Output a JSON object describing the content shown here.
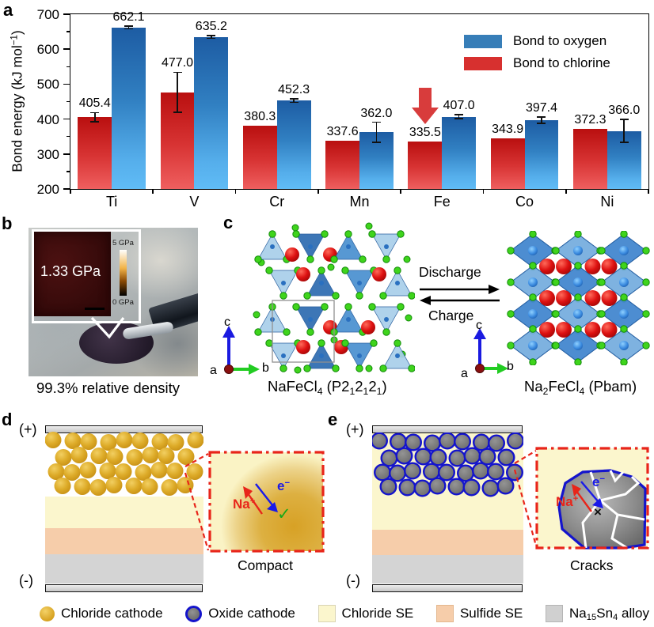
{
  "figure": {
    "panel_labels": {
      "a": "a",
      "b": "b",
      "c": "c",
      "d": "d",
      "e": "e"
    }
  },
  "chart_data": {
    "type": "bar",
    "categories": [
      "Ti",
      "V",
      "Cr",
      "Mn",
      "Fe",
      "Co",
      "Ni"
    ],
    "series": [
      {
        "name": "Bond to oxygen",
        "legend_color": "#377eb8",
        "values": [
          662.1,
          635.2,
          452.3,
          362.0,
          407.0,
          397.4,
          366.0
        ],
        "errors": [
          4,
          4,
          5,
          29,
          5,
          9,
          33
        ]
      },
      {
        "name": "Bond to chlorine",
        "legend_color": "#d7302f",
        "values": [
          405.4,
          477.0,
          380.3,
          337.6,
          335.5,
          343.9,
          372.3
        ],
        "errors": [
          13,
          57,
          0,
          0,
          0,
          0,
          0
        ]
      }
    ],
    "ylabel_rich": [
      "Bond energy (kJ mol",
      {
        "sup": "−1"
      },
      ")"
    ],
    "ylim": [
      200,
      700
    ],
    "yticks": [
      200,
      300,
      400,
      500,
      600,
      700
    ],
    "highlight_arrow": {
      "category": "Fe",
      "series": "Bond to chlorine",
      "color": "#d83c3c"
    },
    "legend_position": "top-right",
    "grid": false
  },
  "panel_b": {
    "hardness": "1.33 GPa",
    "scale_max": "5 GPa",
    "scale_min": "0 GPa",
    "caption": "99.3% relative density"
  },
  "panel_c": {
    "discharge": "Discharge",
    "charge": "Charge",
    "left_caption_rich": [
      "NaFeCl",
      {
        "sub": "4"
      },
      " (P2",
      {
        "sub": "1"
      },
      "2",
      {
        "sub": "1"
      },
      "2",
      {
        "sub": "1"
      },
      ")"
    ],
    "right_caption_rich": [
      "Na",
      {
        "sub": "2"
      },
      "FeCl",
      {
        "sub": "4"
      },
      " (Pbam)"
    ],
    "axis_a": "a",
    "axis_b": "b",
    "axis_c": "c"
  },
  "panel_d": {
    "plus": "(+)",
    "minus": "(-)",
    "na_rich": [
      "Na",
      {
        "sup": "+"
      }
    ],
    "electron_rich": [
      "e",
      {
        "sup": "−"
      }
    ],
    "check": "✓",
    "caption": "Compact"
  },
  "panel_e": {
    "plus": "(+)",
    "minus": "(-)",
    "na_rich": [
      "Na",
      {
        "sup": "+"
      }
    ],
    "electron_rich": [
      "e",
      {
        "sup": "−"
      }
    ],
    "cross": "×",
    "caption": "Cracks"
  },
  "bottom_legend": {
    "items": [
      {
        "icon": "chloride-cathode-circle",
        "swatch_class": "sw-circle sw-gold",
        "label_rich": [
          "Chloride cathode"
        ]
      },
      {
        "icon": "oxide-cathode-circle",
        "swatch_class": "sw-circle sw-oxide",
        "label_rich": [
          "Oxide cathode"
        ]
      },
      {
        "icon": "chloride-se-square",
        "swatch_class": "sw-square sw-chlse",
        "label_rich": [
          "Chloride SE"
        ]
      },
      {
        "icon": "sulfide-se-square",
        "swatch_class": "sw-square sw-sulse",
        "label_rich": [
          "Sulfide SE"
        ]
      },
      {
        "icon": "alloy-square",
        "swatch_class": "sw-square sw-alloy",
        "label_rich": [
          "Na",
          {
            "sub": "15"
          },
          "Sn",
          {
            "sub": "4"
          },
          " alloy"
        ]
      }
    ]
  },
  "colors": {
    "oxygen_bar": "#377eb8",
    "chlorine_bar": "#d7302f",
    "chloride_cathode": "#ddaa22",
    "oxide_cathode": "#7a7a7a",
    "oxide_border": "#1414cc",
    "chloride_se": "#fbf6cd",
    "sulfide_se": "#f6cdaa",
    "alloy": "#d0d0d0",
    "inset_border": "#e8251a",
    "na_label": "#e8251a",
    "electron_label": "#1a1ae8",
    "check_green": "#18a818"
  }
}
